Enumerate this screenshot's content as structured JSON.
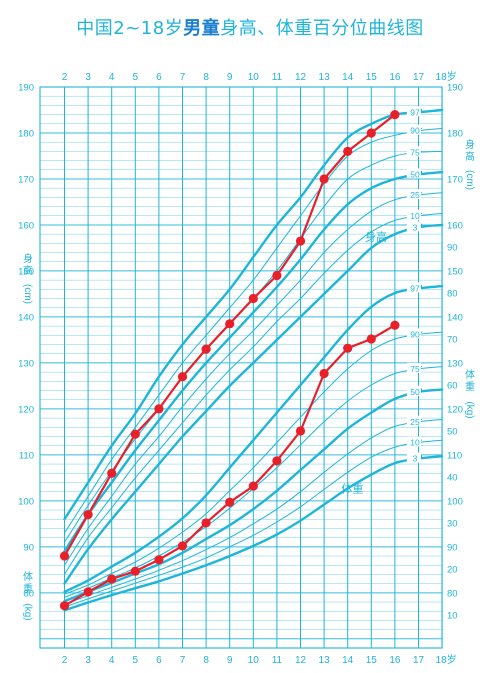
{
  "title": {
    "prefix": "中国2~18岁",
    "bold": "男童",
    "suffix": "身高、体重百分位曲线图"
  },
  "colors": {
    "grid": "#1fb5d9",
    "curve": "#1fb5d9",
    "text": "#1fb5d9",
    "marker": "#e8202a"
  },
  "chart_data": {
    "type": "line",
    "x_ticks": [
      "2",
      "3",
      "4",
      "5",
      "6",
      "7",
      "8",
      "9",
      "10",
      "11",
      "12",
      "13",
      "14",
      "15",
      "16",
      "17",
      "18岁"
    ],
    "xlim": [
      2,
      18
    ],
    "height": {
      "label_chars": [
        "身",
        "高",
        "(cm)"
      ],
      "inline_label": "身高",
      "ylim": [
        68,
        190
      ],
      "ticks": [
        80,
        90,
        100,
        110,
        120,
        130,
        140,
        150,
        160,
        170,
        180,
        190
      ],
      "percentile_labels": [
        "97",
        "90",
        "75",
        "50",
        "25",
        "10",
        "3"
      ],
      "percentiles": [
        {
          "p": "97",
          "values": [
            [
              2,
              96
            ],
            [
              3,
              104
            ],
            [
              4,
              112
            ],
            [
              5,
              119
            ],
            [
              6,
              127
            ],
            [
              7,
              134
            ],
            [
              8,
              140
            ],
            [
              9,
              146
            ],
            [
              10,
              153
            ],
            [
              11,
              160
            ],
            [
              12,
              166
            ],
            [
              13,
              173
            ],
            [
              14,
              179
            ],
            [
              15,
              182
            ],
            [
              16,
              184
            ],
            [
              17,
              184.5
            ],
            [
              18,
              185
            ]
          ]
        },
        {
          "p": "90",
          "values": [
            [
              2,
              93
            ],
            [
              3,
              101
            ],
            [
              4,
              109
            ],
            [
              5,
              116
            ],
            [
              6,
              123
            ],
            [
              7,
              130
            ],
            [
              8,
              136
            ],
            [
              9,
              142
            ],
            [
              10,
              148
            ],
            [
              11,
              155
            ],
            [
              12,
              162
            ],
            [
              13,
              169
            ],
            [
              14,
              175
            ],
            [
              15,
              178
            ],
            [
              16,
              179.5
            ],
            [
              17,
              180.5
            ],
            [
              18,
              181
            ]
          ]
        },
        {
          "p": "75",
          "values": [
            [
              2,
              91
            ],
            [
              3,
              99
            ],
            [
              4,
              106.5
            ],
            [
              5,
              113.5
            ],
            [
              6,
              120
            ],
            [
              7,
              127
            ],
            [
              8,
              133
            ],
            [
              9,
              138.5
            ],
            [
              10,
              144
            ],
            [
              11,
              150
            ],
            [
              12,
              157
            ],
            [
              13,
              164
            ],
            [
              14,
              170
            ],
            [
              15,
              173
            ],
            [
              16,
              175
            ],
            [
              17,
              175.8
            ],
            [
              18,
              176
            ]
          ]
        },
        {
          "p": "50",
          "values": [
            [
              2,
              89
            ],
            [
              3,
              97
            ],
            [
              4,
              104
            ],
            [
              5,
              111
            ],
            [
              6,
              117.5
            ],
            [
              7,
              124
            ],
            [
              8,
              130
            ],
            [
              9,
              135.5
            ],
            [
              10,
              141
            ],
            [
              11,
              146.5
            ],
            [
              12,
              152.5
            ],
            [
              13,
              159
            ],
            [
              14,
              164.5
            ],
            [
              15,
              168
            ],
            [
              16,
              170
            ],
            [
              17,
              171
            ],
            [
              18,
              171.5
            ]
          ]
        },
        {
          "p": "25",
          "values": [
            [
              2,
              86
            ],
            [
              3,
              94
            ],
            [
              4,
              101
            ],
            [
              5,
              108
            ],
            [
              6,
              114
            ],
            [
              7,
              120.5
            ],
            [
              8,
              126.5
            ],
            [
              9,
              132
            ],
            [
              10,
              137
            ],
            [
              11,
              142.5
            ],
            [
              12,
              148
            ],
            [
              13,
              154
            ],
            [
              14,
              159
            ],
            [
              15,
              163
            ],
            [
              16,
              165.5
            ],
            [
              17,
              166.5
            ],
            [
              18,
              167
            ]
          ]
        },
        {
          "p": "10",
          "values": [
            [
              2,
              84
            ],
            [
              3,
              92
            ],
            [
              4,
              98.5
            ],
            [
              5,
              105
            ],
            [
              6,
              111
            ],
            [
              7,
              117
            ],
            [
              8,
              123
            ],
            [
              9,
              128.5
            ],
            [
              10,
              133.5
            ],
            [
              11,
              139
            ],
            [
              12,
              144
            ],
            [
              13,
              149.5
            ],
            [
              14,
              154.5
            ],
            [
              15,
              158.5
            ],
            [
              16,
              161
            ],
            [
              17,
              162
            ],
            [
              18,
              162.5
            ]
          ]
        },
        {
          "p": "3",
          "values": [
            [
              2,
              82
            ],
            [
              3,
              89.5
            ],
            [
              4,
              96
            ],
            [
              5,
              102
            ],
            [
              6,
              108
            ],
            [
              7,
              114
            ],
            [
              8,
              119.5
            ],
            [
              9,
              125
            ],
            [
              10,
              130
            ],
            [
              11,
              135
            ],
            [
              12,
              140
            ],
            [
              13,
              145
            ],
            [
              14,
              150
            ],
            [
              15,
              155
            ],
            [
              16,
              158
            ],
            [
              17,
              159.5
            ],
            [
              18,
              160
            ]
          ]
        }
      ],
      "child": [
        [
          2,
          88
        ],
        [
          3,
          97
        ],
        [
          4,
          106
        ],
        [
          5,
          114.5
        ],
        [
          6,
          120
        ],
        [
          7,
          127
        ],
        [
          8,
          133
        ],
        [
          9,
          138.5
        ],
        [
          10,
          144
        ],
        [
          11,
          149
        ],
        [
          12,
          156.5
        ],
        [
          13,
          170
        ],
        [
          14,
          176
        ],
        [
          15,
          180
        ],
        [
          16,
          184
        ]
      ]
    },
    "weight": {
      "label_chars": [
        "体",
        "重",
        "(kg)"
      ],
      "inline_label": "体重",
      "axis_ticks": [
        10,
        20,
        30,
        40,
        50,
        60,
        70,
        80,
        90
      ],
      "right_ticks": [
        10,
        20,
        30,
        40,
        50,
        60,
        70,
        80
      ],
      "percentile_labels": [
        "97",
        "90",
        "75",
        "50",
        "25",
        "10",
        "3"
      ],
      "percentiles": [
        {
          "p": "97",
          "values": [
            [
              2,
              15
            ],
            [
              3,
              17.5
            ],
            [
              4,
              20.5
            ],
            [
              5,
              23.5
            ],
            [
              6,
              27
            ],
            [
              7,
              31
            ],
            [
              8,
              36
            ],
            [
              9,
              42
            ],
            [
              10,
              48
            ],
            [
              11,
              54
            ],
            [
              12,
              60
            ],
            [
              13,
              66
            ],
            [
              14,
              72
            ],
            [
              15,
              77
            ],
            [
              16,
              80
            ],
            [
              17,
              81
            ],
            [
              18,
              81.5
            ]
          ]
        },
        {
          "p": "90",
          "values": [
            [
              2,
              14.5
            ],
            [
              3,
              16.5
            ],
            [
              4,
              19
            ],
            [
              5,
              21.5
            ],
            [
              6,
              24.5
            ],
            [
              7,
              28
            ],
            [
              8,
              32
            ],
            [
              9,
              37
            ],
            [
              10,
              42
            ],
            [
              11,
              47.5
            ],
            [
              12,
              53
            ],
            [
              13,
              58.5
            ],
            [
              14,
              63.5
            ],
            [
              15,
              67.5
            ],
            [
              16,
              70
            ],
            [
              17,
              71
            ],
            [
              18,
              71.5
            ]
          ]
        },
        {
          "p": "75",
          "values": [
            [
              2,
              13.8
            ],
            [
              3,
              15.8
            ],
            [
              4,
              18
            ],
            [
              5,
              20.2
            ],
            [
              6,
              22.8
            ],
            [
              7,
              25.8
            ],
            [
              8,
              29.2
            ],
            [
              9,
              33.2
            ],
            [
              10,
              37.5
            ],
            [
              11,
              42
            ],
            [
              12,
              47
            ],
            [
              13,
              52
            ],
            [
              14,
              56.5
            ],
            [
              15,
              60
            ],
            [
              16,
              62.5
            ],
            [
              17,
              63.5
            ],
            [
              18,
              64
            ]
          ]
        },
        {
          "p": "50",
          "values": [
            [
              2,
              13
            ],
            [
              3,
              15
            ],
            [
              4,
              17
            ],
            [
              5,
              19
            ],
            [
              6,
              21
            ],
            [
              7,
              23.5
            ],
            [
              8,
              26.5
            ],
            [
              9,
              29.5
            ],
            [
              10,
              33
            ],
            [
              11,
              37
            ],
            [
              12,
              41.5
            ],
            [
              13,
              46
            ],
            [
              14,
              50.5
            ],
            [
              15,
              54
            ],
            [
              16,
              57
            ],
            [
              17,
              58.5
            ],
            [
              18,
              59
            ]
          ]
        },
        {
          "p": "25",
          "values": [
            [
              2,
              12.3
            ],
            [
              3,
              14.2
            ],
            [
              4,
              16
            ],
            [
              5,
              17.8
            ],
            [
              6,
              19.7
            ],
            [
              7,
              21.8
            ],
            [
              8,
              24.2
            ],
            [
              9,
              26.8
            ],
            [
              10,
              29.8
            ],
            [
              11,
              33
            ],
            [
              12,
              36.8
            ],
            [
              13,
              41
            ],
            [
              14,
              45
            ],
            [
              15,
              48.5
            ],
            [
              16,
              51
            ],
            [
              17,
              52
            ],
            [
              18,
              52.5
            ]
          ]
        },
        {
          "p": "10",
          "values": [
            [
              2,
              11.7
            ],
            [
              3,
              13.5
            ],
            [
              4,
              15.2
            ],
            [
              5,
              16.9
            ],
            [
              6,
              18.6
            ],
            [
              7,
              20.4
            ],
            [
              8,
              22.4
            ],
            [
              9,
              24.8
            ],
            [
              10,
              27.3
            ],
            [
              11,
              30.2
            ],
            [
              12,
              33.5
            ],
            [
              13,
              37.3
            ],
            [
              14,
              41
            ],
            [
              15,
              44.3
            ],
            [
              16,
              46.5
            ],
            [
              17,
              47.5
            ],
            [
              18,
              48
            ]
          ]
        },
        {
          "p": "3",
          "values": [
            [
              2,
              11
            ],
            [
              3,
              12.7
            ],
            [
              4,
              14.3
            ],
            [
              5,
              15.8
            ],
            [
              6,
              17.3
            ],
            [
              7,
              19
            ],
            [
              8,
              20.8
            ],
            [
              9,
              22.8
            ],
            [
              10,
              25
            ],
            [
              11,
              27.5
            ],
            [
              12,
              30.5
            ],
            [
              13,
              34
            ],
            [
              14,
              37.5
            ],
            [
              15,
              40.5
            ],
            [
              16,
              43
            ],
            [
              17,
              44
            ],
            [
              18,
              44.5
            ]
          ]
        }
      ],
      "child": [
        [
          2,
          12
        ],
        [
          3,
          15
        ],
        [
          4,
          17.8
        ],
        [
          5,
          19.5
        ],
        [
          6,
          22
        ],
        [
          7,
          25
        ],
        [
          8,
          30
        ],
        [
          9,
          34.5
        ],
        [
          10,
          38
        ],
        [
          11,
          43.5
        ],
        [
          12,
          50
        ],
        [
          13,
          62.5
        ],
        [
          14,
          68
        ],
        [
          15,
          70
        ],
        [
          16,
          73
        ]
      ]
    }
  }
}
